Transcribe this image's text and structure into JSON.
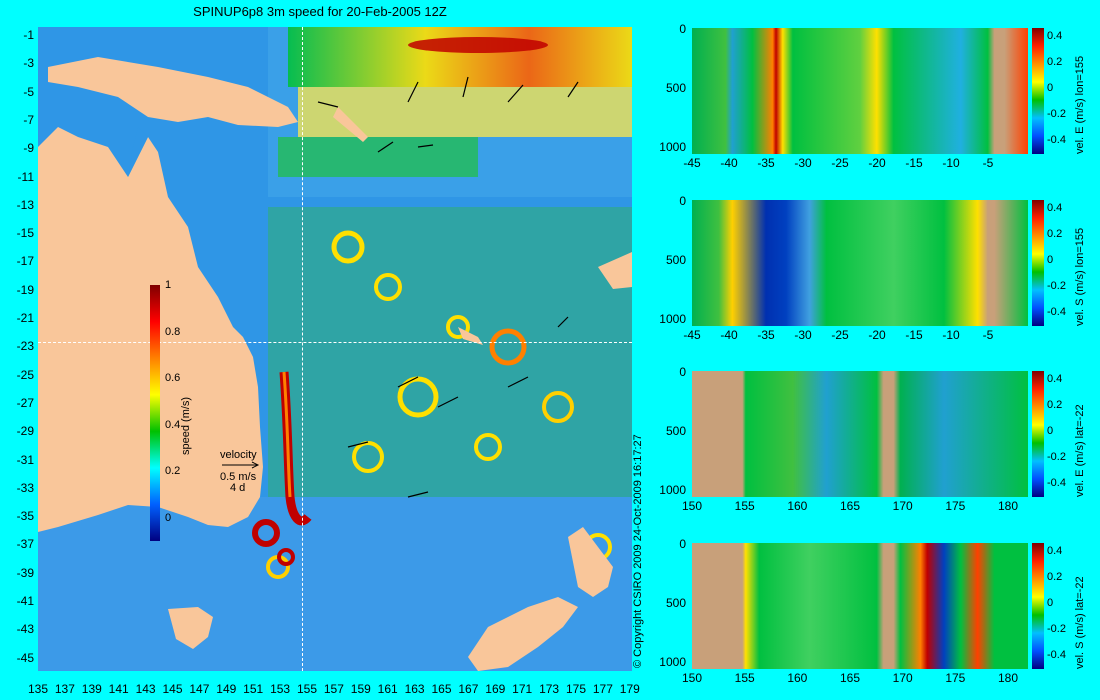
{
  "title": "SPINUP6p8 3m speed for 20-Feb-2005 12Z",
  "map": {
    "y_ticks": [
      "-1",
      "-3",
      "-5",
      "-7",
      "-9",
      "-11",
      "-13",
      "-15",
      "-17",
      "-19",
      "-21",
      "-23",
      "-25",
      "-27",
      "-29",
      "-31",
      "-33",
      "-35",
      "-37",
      "-39",
      "-41",
      "-43",
      "-45"
    ],
    "x_ticks": [
      "135",
      "137",
      "139",
      "141",
      "143",
      "145",
      "147",
      "149",
      "151",
      "153",
      "155",
      "157",
      "159",
      "161",
      "163",
      "165",
      "167",
      "169",
      "171",
      "173",
      "175",
      "177",
      "179"
    ],
    "colorbar": {
      "ticks": [
        "1",
        "0.8",
        "0.6",
        "0.4",
        "0.2",
        "0"
      ],
      "label": "speed (m/s)",
      "range": [
        0,
        1
      ]
    },
    "velocity_legend": {
      "title": "velocity",
      "scale": "0.5 m/s",
      "duration": "4 d"
    },
    "crosshair": {
      "lon": 155,
      "lat": -22
    },
    "colors": {
      "land": "#f9c69a",
      "ocean_low": "#0050ff",
      "ocean_mid": "#00c040",
      "ocean_high": "#c00000"
    }
  },
  "copyright": "© Copyright CSIRO 2009   24-Oct-2009 16:17:27",
  "sections": [
    {
      "id": "e-lon155",
      "label": "vel. E (m/s) lon=155",
      "y_ticks": [
        "0",
        "500",
        "1000"
      ],
      "x_ticks": [
        "-45",
        "-40",
        "-35",
        "-30",
        "-25",
        "-20",
        "-15",
        "-10",
        "-5"
      ],
      "colorbar_ticks": [
        "0.4",
        "0.2",
        "0",
        "-0.2",
        "-0.4"
      ]
    },
    {
      "id": "s-lon155",
      "label": "vel. S (m/s) lon=155",
      "y_ticks": [
        "0",
        "500",
        "1000"
      ],
      "x_ticks": [
        "-45",
        "-40",
        "-35",
        "-30",
        "-25",
        "-20",
        "-15",
        "-10",
        "-5"
      ],
      "colorbar_ticks": [
        "0.4",
        "0.2",
        "0",
        "-0.2",
        "-0.4"
      ]
    },
    {
      "id": "e-lat22",
      "label": "vel. E (m/s) lat=-22",
      "y_ticks": [
        "0",
        "500",
        "1000"
      ],
      "x_ticks": [
        "150",
        "155",
        "160",
        "165",
        "170",
        "175",
        "180"
      ],
      "colorbar_ticks": [
        "0.4",
        "0.2",
        "0",
        "-0.2",
        "-0.4"
      ]
    },
    {
      "id": "s-lat22",
      "label": "vel. S (m/s) lat=-22",
      "y_ticks": [
        "0",
        "500",
        "1000"
      ],
      "x_ticks": [
        "150",
        "155",
        "160",
        "165",
        "170",
        "175",
        "180"
      ],
      "colorbar_ticks": [
        "0.4",
        "0.2",
        "0",
        "-0.2",
        "-0.4"
      ]
    }
  ]
}
